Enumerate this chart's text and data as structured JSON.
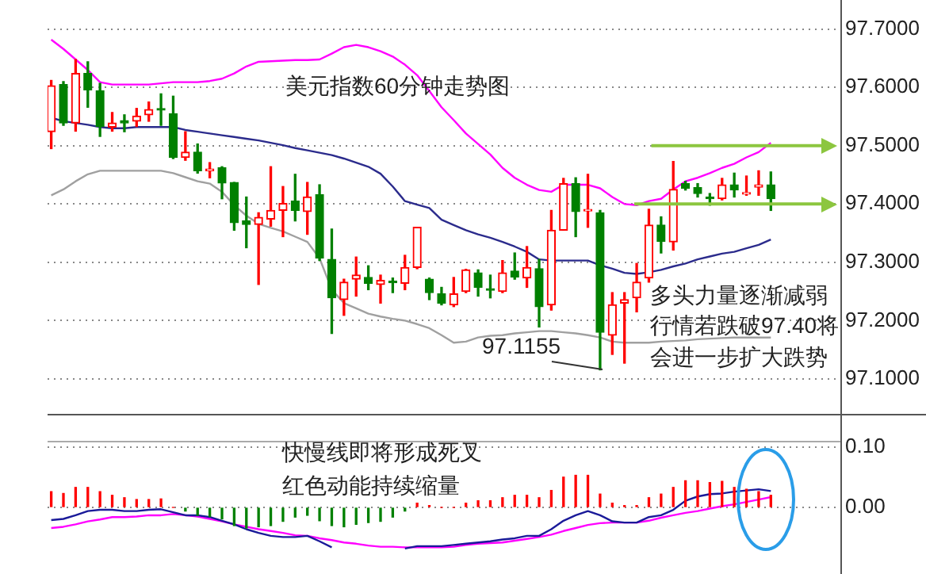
{
  "chart_data": [
    {
      "type": "candlestick",
      "title": "美元指数60分钟走势图",
      "categories": [
        null,
        null,
        null,
        null,
        null,
        null,
        null,
        null,
        null,
        null,
        null,
        null,
        null,
        null,
        null,
        null,
        null,
        null,
        null,
        null,
        null,
        null,
        null,
        null,
        null,
        null,
        null,
        null,
        null,
        null,
        null,
        null,
        null,
        null,
        null,
        null,
        null,
        null,
        null,
        null,
        null,
        null,
        null,
        null,
        null,
        null,
        null,
        null,
        null,
        null,
        null,
        null,
        null,
        null,
        null,
        null,
        null,
        null,
        null,
        null
      ],
      "ohlc": [
        [
          97.524,
          97.612,
          97.495,
          97.603
        ],
        [
          97.605,
          97.61,
          97.535,
          97.539
        ],
        [
          97.539,
          97.648,
          97.525,
          97.624
        ],
        [
          97.624,
          97.644,
          97.566,
          97.596
        ],
        [
          97.594,
          97.607,
          97.516,
          97.533
        ],
        [
          97.532,
          97.557,
          97.525,
          97.539
        ],
        [
          97.543,
          97.553,
          97.524,
          97.539
        ],
        [
          97.542,
          97.564,
          97.533,
          97.551
        ],
        [
          97.553,
          97.575,
          97.542,
          97.562
        ],
        [
          97.563,
          97.589,
          97.535,
          97.561
        ],
        [
          97.555,
          97.585,
          97.478,
          97.48
        ],
        [
          97.48,
          97.524,
          97.475,
          97.489
        ],
        [
          97.489,
          97.503,
          97.453,
          97.457
        ],
        [
          97.457,
          97.471,
          97.445,
          97.46
        ],
        [
          97.462,
          97.464,
          97.409,
          97.436
        ],
        [
          97.437,
          97.437,
          97.355,
          97.368
        ],
        [
          97.371,
          97.412,
          97.325,
          97.365
        ],
        [
          97.365,
          97.385,
          97.262,
          97.377
        ],
        [
          97.374,
          97.464,
          97.362,
          97.389
        ],
        [
          97.389,
          97.43,
          97.344,
          97.401
        ],
        [
          97.405,
          97.451,
          97.371,
          97.389
        ],
        [
          97.387,
          97.437,
          97.348,
          97.412
        ],
        [
          97.416,
          97.433,
          97.303,
          97.307
        ],
        [
          97.305,
          97.357,
          97.178,
          97.239
        ],
        [
          97.236,
          97.271,
          97.209,
          97.266
        ],
        [
          97.271,
          97.309,
          97.242,
          97.278
        ],
        [
          97.274,
          97.294,
          97.253,
          97.264
        ],
        [
          97.262,
          97.278,
          97.23,
          97.269
        ],
        [
          97.267,
          97.273,
          97.248,
          97.265
        ],
        [
          97.264,
          97.312,
          97.253,
          97.291
        ],
        [
          97.291,
          97.36,
          97.289,
          97.36
        ],
        [
          97.271,
          97.273,
          97.236,
          97.248
        ],
        [
          97.246,
          97.257,
          97.227,
          97.23
        ],
        [
          97.227,
          97.274,
          97.224,
          97.246
        ],
        [
          97.25,
          97.288,
          97.248,
          97.287
        ],
        [
          97.282,
          97.287,
          97.242,
          97.257
        ],
        [
          97.253,
          97.278,
          97.239,
          97.252
        ],
        [
          97.25,
          97.303,
          97.248,
          97.282
        ],
        [
          97.285,
          97.316,
          97.271,
          97.275
        ],
        [
          97.273,
          97.327,
          97.257,
          97.291
        ],
        [
          97.289,
          97.305,
          97.189,
          97.224
        ],
        [
          97.227,
          97.389,
          97.218,
          97.355
        ],
        [
          97.355,
          97.444,
          97.355,
          97.435
        ],
        [
          97.435,
          97.445,
          97.344,
          97.387
        ],
        [
          97.388,
          97.451,
          97.36,
          97.389
        ],
        [
          97.385,
          97.389,
          97.1155,
          97.18
        ],
        [
          97.175,
          97.248,
          97.142,
          97.227
        ],
        [
          97.23,
          97.248,
          97.127,
          97.236
        ],
        [
          97.239,
          97.298,
          97.215,
          97.266
        ],
        [
          97.273,
          97.391,
          97.266,
          97.364
        ],
        [
          97.364,
          97.378,
          97.316,
          97.336
        ],
        [
          97.335,
          97.473,
          97.321,
          97.425
        ],
        [
          97.435,
          97.439,
          97.424,
          97.427
        ],
        [
          97.428,
          97.435,
          97.412,
          97.418
        ],
        [
          97.41,
          97.418,
          97.398,
          97.409
        ],
        [
          97.409,
          97.444,
          97.407,
          97.433
        ],
        [
          97.433,
          97.453,
          97.412,
          97.424
        ],
        [
          97.417,
          97.448,
          97.415,
          97.419
        ],
        [
          97.429,
          97.457,
          97.415,
          97.433
        ],
        [
          97.433,
          97.455,
          97.389,
          97.409
        ]
      ],
      "colors": [
        "#ff0000",
        "#008000",
        "#ff0000",
        "#008000",
        "#008000",
        "#ff0000",
        "#008000",
        "#ff0000",
        "#ff0000",
        "#008000",
        "#008000",
        "#ff0000",
        "#008000",
        "#ff0000",
        "#008000",
        "#008000",
        "#008000",
        "#ff0000",
        "#ff0000",
        "#ff0000",
        "#008000",
        "#ff0000",
        "#008000",
        "#008000",
        "#ff0000",
        "#ff0000",
        "#008000",
        "#ff0000",
        "#008000",
        "#ff0000",
        "#ff0000",
        "#008000",
        "#008000",
        "#ff0000",
        "#ff0000",
        "#008000",
        "#008000",
        "#ff0000",
        "#008000",
        "#ff0000",
        "#008000",
        "#ff0000",
        "#ff0000",
        "#008000",
        "#ff0000",
        "#008000",
        "#ff0000",
        "#ff0000",
        "#ff0000",
        "#ff0000",
        "#008000",
        "#ff0000",
        "#008000",
        "#008000",
        "#008000",
        "#ff0000",
        "#008000",
        "#ff0000",
        "#ff0000",
        "#008000"
      ],
      "series": [
        {
          "type": "line",
          "color": "#ff00ff",
          "values": [
            97.682,
            97.666,
            97.648,
            97.63,
            97.609,
            97.605,
            97.605,
            97.605,
            97.605,
            97.607,
            97.609,
            97.609,
            97.609,
            97.611,
            97.615,
            97.624,
            97.636,
            97.644,
            97.645,
            97.646,
            97.647,
            97.647,
            97.648,
            97.658,
            97.669,
            97.673,
            97.669,
            97.662,
            97.653,
            97.639,
            97.621,
            97.594,
            97.566,
            97.544,
            97.521,
            97.503,
            97.485,
            97.462,
            97.445,
            97.433,
            97.424,
            97.421,
            97.433,
            97.433,
            97.433,
            97.427,
            97.412,
            97.4,
            97.398,
            97.405,
            97.409,
            97.425,
            97.439,
            97.445,
            97.453,
            97.462,
            97.469,
            97.48,
            97.489,
            97.505
          ]
        },
        {
          "type": "line",
          "color": "#2b2b8c",
          "values": [
            97.548,
            97.542,
            97.539,
            97.536,
            97.532,
            97.53,
            97.53,
            97.532,
            97.532,
            97.532,
            97.532,
            97.527,
            97.524,
            97.521,
            97.518,
            97.515,
            97.512,
            97.509,
            97.505,
            97.501,
            97.496,
            97.492,
            97.488,
            97.484,
            97.478,
            97.471,
            97.464,
            97.452,
            97.43,
            97.405,
            97.399,
            97.393,
            97.373,
            97.364,
            97.355,
            97.348,
            97.342,
            97.335,
            97.327,
            97.318,
            97.305,
            97.303,
            97.303,
            97.303,
            97.303,
            97.295,
            97.289,
            97.282,
            97.28,
            97.283,
            97.287,
            97.293,
            97.298,
            97.305,
            97.31,
            97.315,
            97.318,
            97.324,
            97.33,
            97.339
          ]
        },
        {
          "type": "line",
          "color": "#a0a0a0",
          "values": [
            97.415,
            97.425,
            97.439,
            97.451,
            97.457,
            97.457,
            97.457,
            97.457,
            97.457,
            97.457,
            97.453,
            97.446,
            97.439,
            97.435,
            97.421,
            97.398,
            97.38,
            97.366,
            97.359,
            97.353,
            97.344,
            97.335,
            97.307,
            97.253,
            97.23,
            97.221,
            97.212,
            97.207,
            97.203,
            97.2,
            97.194,
            97.187,
            97.175,
            97.162,
            97.164,
            97.171,
            97.174,
            97.175,
            97.178,
            97.18,
            97.182,
            97.182,
            97.18,
            97.178,
            97.175,
            97.171,
            97.164,
            97.162,
            97.162,
            97.162,
            97.164,
            97.165,
            97.166,
            97.168,
            97.169,
            97.17,
            97.171,
            97.171,
            97.171,
            97.171
          ]
        }
      ],
      "ylim": [
        97.04,
        97.75
      ],
      "yticks": [
        {
          "value": 97.1,
          "label": "97.1000"
        },
        {
          "value": 97.2,
          "label": "97.2000"
        },
        {
          "value": 97.3,
          "label": "97.3000"
        },
        {
          "value": 97.4,
          "label": "97.4000"
        },
        {
          "value": 97.5,
          "label": "97.5000"
        },
        {
          "value": 97.6,
          "label": "97.6000"
        },
        {
          "value": 97.7,
          "label": "97.7000"
        }
      ],
      "grid": "y",
      "tick_labels": "y",
      "ref_lines": [
        {
          "axis": "y",
          "value": 97.5,
          "color": "#8cc63f"
        },
        {
          "axis": "y",
          "value": 97.4,
          "color": "#8cc63f"
        }
      ],
      "annotations": [
        "多头力量逐渐减弱",
        "行情若跌破97.40将",
        "会进一步扩大跌势",
        "97.1155"
      ]
    },
    {
      "type": "bar",
      "categories": [
        null,
        null,
        null,
        null,
        null,
        null,
        null,
        null,
        null,
        null,
        null,
        null,
        null,
        null,
        null,
        null,
        null,
        null,
        null,
        null,
        null,
        null,
        null,
        null,
        null,
        null,
        null,
        null,
        null,
        null,
        null,
        null,
        null,
        null,
        null,
        null,
        null,
        null,
        null,
        null,
        null,
        null,
        null,
        null,
        null,
        null,
        null,
        null,
        null,
        null,
        null,
        null,
        null,
        null,
        null,
        null,
        null,
        null,
        null,
        null
      ],
      "series": [
        {
          "type": "bar",
          "values": [
            0.026,
            0.023,
            0.033,
            0.033,
            0.026,
            0.02,
            0.016,
            0.013,
            0.013,
            0.014,
            0,
            -0.006,
            -0.013,
            -0.015,
            -0.019,
            -0.03,
            -0.034,
            -0.032,
            -0.03,
            -0.023,
            -0.016,
            -0.013,
            -0.022,
            -0.03,
            -0.032,
            -0.028,
            -0.025,
            -0.023,
            -0.016,
            -0.006,
            0.007,
            0.003,
            0,
            0,
            0.007,
            0.011,
            0.011,
            0.016,
            0.02,
            0.02,
            0.016,
            0.028,
            0.05,
            0.053,
            0.053,
            0.022,
            0.007,
            0.003,
            0.003,
            0.016,
            0.022,
            0.033,
            0.044,
            0.044,
            0.041,
            0.043,
            0.033,
            0.03,
            0.026,
            0.02
          ],
          "colors": [
            "#ff0000",
            "#ff0000",
            "#ff0000",
            "#ff0000",
            "#ff0000",
            "#ff0000",
            "#ff0000",
            "#ff0000",
            "#ff0000",
            "#ff0000",
            "#ff0000",
            "#008000",
            "#008000",
            "#008000",
            "#008000",
            "#008000",
            "#008000",
            "#008000",
            "#008000",
            "#008000",
            "#008000",
            "#008000",
            "#008000",
            "#008000",
            "#008000",
            "#008000",
            "#008000",
            "#008000",
            "#008000",
            "#008000",
            "#ff0000",
            "#ff0000",
            "#ff0000",
            "#ff0000",
            "#ff0000",
            "#ff0000",
            "#ff0000",
            "#ff0000",
            "#ff0000",
            "#ff0000",
            "#ff0000",
            "#ff0000",
            "#ff0000",
            "#ff0000",
            "#ff0000",
            "#ff0000",
            "#ff0000",
            "#ff0000",
            "#ff0000",
            "#ff0000",
            "#ff0000",
            "#ff0000",
            "#ff0000",
            "#ff0000",
            "#ff0000",
            "#ff0000",
            "#ff0000",
            "#ff0000",
            "#ff0000",
            "#ff0000"
          ]
        },
        {
          "type": "line",
          "color": "#1a1a99",
          "values": [
            -0.021,
            -0.019,
            -0.013,
            -0.006,
            -0.004,
            -0.004,
            -0.006,
            -0.006,
            -0.004,
            -0.003,
            -0.008,
            -0.013,
            -0.013,
            -0.016,
            -0.022,
            -0.028,
            -0.036,
            -0.042,
            -0.047,
            -0.049,
            -0.049,
            -0.047,
            -0.056,
            -0.066,
            null,
            null,
            null,
            null,
            null,
            -0.068,
            -0.064,
            -0.064,
            -0.064,
            -0.062,
            -0.06,
            -0.058,
            -0.056,
            -0.053,
            -0.051,
            -0.047,
            -0.047,
            -0.036,
            -0.022,
            -0.013,
            -0.006,
            -0.013,
            -0.023,
            -0.025,
            -0.025,
            -0.016,
            -0.013,
            -0.004,
            0.011,
            0.018,
            0.022,
            0.023,
            0.026,
            0.028,
            0.03,
            0.027
          ]
        },
        {
          "type": "line",
          "color": "#ff00ff",
          "values": [
            -0.034,
            -0.032,
            -0.028,
            -0.023,
            -0.02,
            -0.016,
            -0.016,
            -0.015,
            -0.013,
            -0.013,
            -0.011,
            -0.013,
            -0.015,
            -0.019,
            -0.023,
            -0.028,
            -0.032,
            -0.036,
            -0.039,
            -0.042,
            -0.046,
            -0.047,
            -0.051,
            -0.054,
            -0.058,
            -0.06,
            -0.063,
            -0.065,
            -0.065,
            -0.066,
            -0.066,
            -0.066,
            -0.066,
            -0.065,
            -0.062,
            -0.06,
            -0.059,
            -0.058,
            -0.055,
            -0.052,
            -0.049,
            -0.045,
            -0.039,
            -0.034,
            -0.029,
            -0.026,
            -0.025,
            -0.025,
            -0.025,
            -0.022,
            -0.017,
            -0.013,
            -0.009,
            -0.006,
            -0.002,
            0.002,
            0.005,
            0.009,
            0.013,
            0.017
          ]
        }
      ],
      "ylim": [
        -0.11,
        0.11
      ],
      "yticks": [
        {
          "value": 0,
          "label": "0.00"
        },
        {
          "value": 0.1,
          "label": "0.10"
        }
      ],
      "grid": "y",
      "tick_labels": "y",
      "annotations": [
        "快慢线即将形成死叉",
        "红色动能持续缩量"
      ]
    }
  ]
}
